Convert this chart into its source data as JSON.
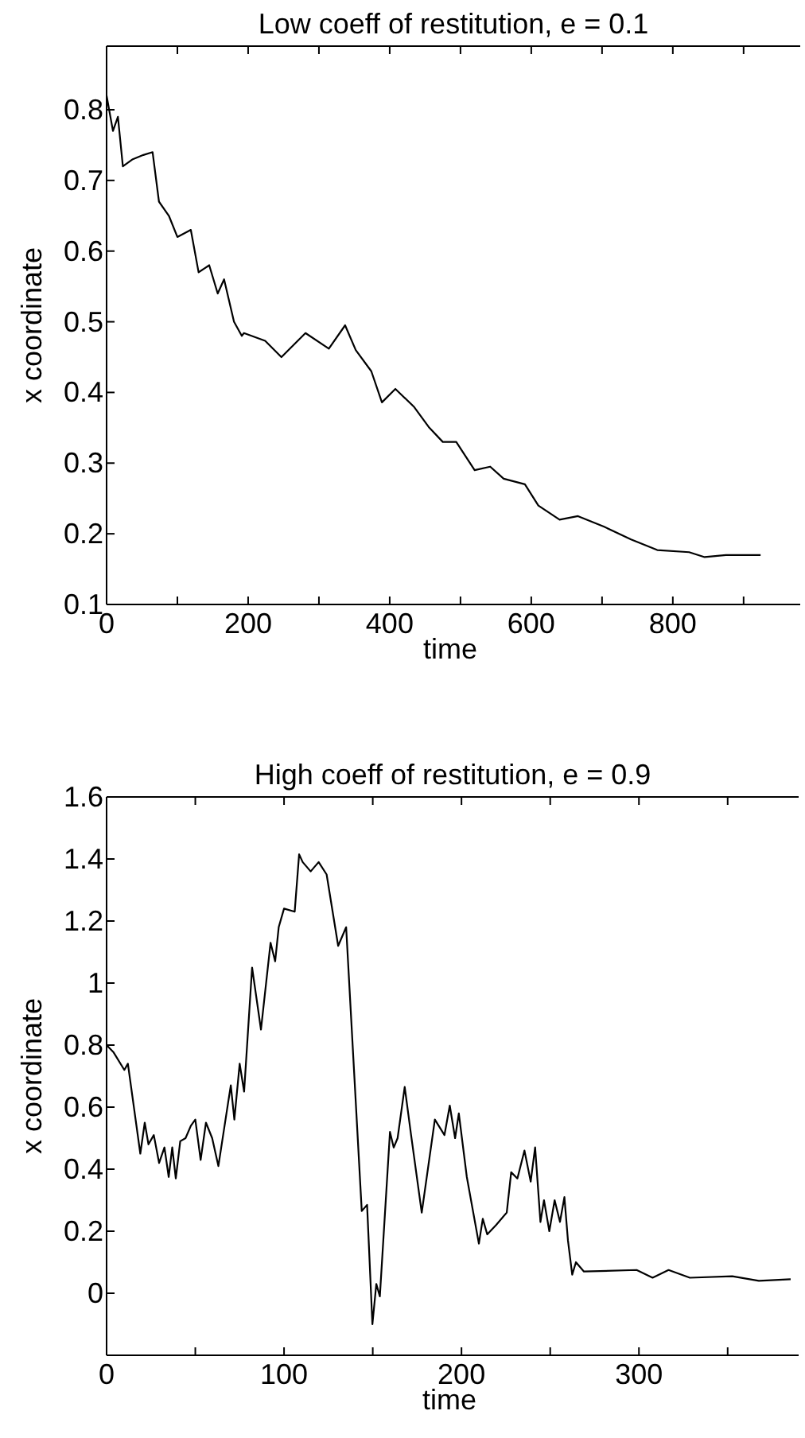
{
  "chart_data": [
    {
      "type": "line",
      "title": "Low coeff of restitution, e = 0.1",
      "xlabel": "time",
      "ylabel": "x coordinate",
      "color": "#000000",
      "x": [
        0,
        9,
        16,
        23,
        37,
        52,
        65,
        74,
        88,
        100,
        119,
        130,
        145,
        157,
        166,
        180,
        191,
        194,
        224,
        247,
        281,
        314,
        337,
        352,
        374,
        389,
        408,
        434,
        456,
        475,
        494,
        520,
        542,
        561,
        591,
        610,
        640,
        666,
        703,
        741,
        778,
        823,
        845,
        875,
        924
      ],
      "values": [
        0.82,
        0.77,
        0.79,
        0.72,
        0.73,
        0.736,
        0.74,
        0.67,
        0.65,
        0.62,
        0.63,
        0.57,
        0.58,
        0.54,
        0.56,
        0.5,
        0.48,
        0.484,
        0.473,
        0.45,
        0.484,
        0.462,
        0.495,
        0.46,
        0.43,
        0.386,
        0.405,
        0.38,
        0.35,
        0.33,
        0.33,
        0.29,
        0.295,
        0.278,
        0.27,
        0.24,
        0.22,
        0.225,
        0.21,
        0.192,
        0.177,
        0.174,
        0.167,
        0.17,
        0.17
      ],
      "xlim": [
        0,
        980
      ],
      "ylim": [
        0.1,
        0.89
      ],
      "xticks": [
        0,
        {
          "value": 100,
          "label": null
        },
        200,
        {
          "value": 300,
          "label": null
        },
        400,
        {
          "value": 500,
          "label": null
        },
        600,
        {
          "value": 700,
          "label": null
        },
        800,
        {
          "value": 900,
          "label": null
        }
      ],
      "yticks": [
        0.1,
        0.2,
        0.3,
        0.4,
        0.5,
        0.6,
        0.7,
        0.8
      ]
    },
    {
      "type": "line",
      "title": "High coeff of restitution, e = 0.9",
      "xlabel": "time",
      "ylabel": "x coordinate",
      "color": "#000000",
      "x": [
        0,
        4,
        10,
        12,
        19,
        21.5,
        23.6,
        26.6,
        29.6,
        32.6,
        35,
        37,
        39,
        41.5,
        44.5,
        47.5,
        50,
        53,
        56,
        59.5,
        63,
        68.5,
        70,
        72,
        75,
        77.5,
        82,
        87,
        92.4,
        95,
        97,
        100,
        106,
        108.5,
        110.5,
        115,
        119.5,
        124,
        130.5,
        135,
        143.8,
        146.8,
        149.8,
        152,
        154,
        159.7,
        161.8,
        164,
        168,
        171.6,
        177.6,
        185,
        190.4,
        193.4,
        196.4,
        198.5,
        203,
        209.8,
        212,
        214.5,
        219.5,
        225.5,
        228,
        231.5,
        235.5,
        239,
        241.5,
        244.5,
        246.5,
        249.5,
        252.5,
        255.5,
        258,
        260,
        262.4,
        264.5,
        269,
        298.7,
        307.7,
        316.7,
        328.7,
        352.6,
        367.6,
        385.5
      ],
      "values": [
        0.8,
        0.776,
        0.72,
        0.74,
        0.45,
        0.55,
        0.48,
        0.51,
        0.42,
        0.47,
        0.375,
        0.47,
        0.37,
        0.49,
        0.5,
        0.54,
        0.56,
        0.43,
        0.55,
        0.5,
        0.41,
        0.615,
        0.67,
        0.56,
        0.74,
        0.65,
        1.05,
        0.85,
        1.13,
        1.07,
        1.18,
        1.24,
        1.23,
        1.415,
        1.39,
        1.36,
        1.39,
        1.35,
        1.12,
        1.18,
        0.265,
        0.285,
        -0.1,
        0.03,
        -0.01,
        0.52,
        0.47,
        0.5,
        0.665,
        0.51,
        0.26,
        0.56,
        0.51,
        0.605,
        0.5,
        0.58,
        0.375,
        0.16,
        0.24,
        0.19,
        0.22,
        0.26,
        0.39,
        0.37,
        0.46,
        0.36,
        0.47,
        0.23,
        0.3,
        0.2,
        0.3,
        0.23,
        0.31,
        0.17,
        0.06,
        0.1,
        0.07,
        0.075,
        0.05,
        0.075,
        0.05,
        0.055,
        0.04,
        0.045
      ],
      "xlim": [
        0,
        390
      ],
      "ylim": [
        -0.2,
        1.6
      ],
      "xticks": [
        0,
        {
          "value": 50,
          "label": null
        },
        100,
        {
          "value": 150,
          "label": null
        },
        200,
        {
          "value": 250,
          "label": null
        },
        300,
        {
          "value": 350,
          "label": null
        }
      ],
      "yticks": [
        0,
        0.2,
        0.4,
        0.6,
        0.8,
        1,
        1.2,
        1.4,
        1.6
      ]
    }
  ]
}
